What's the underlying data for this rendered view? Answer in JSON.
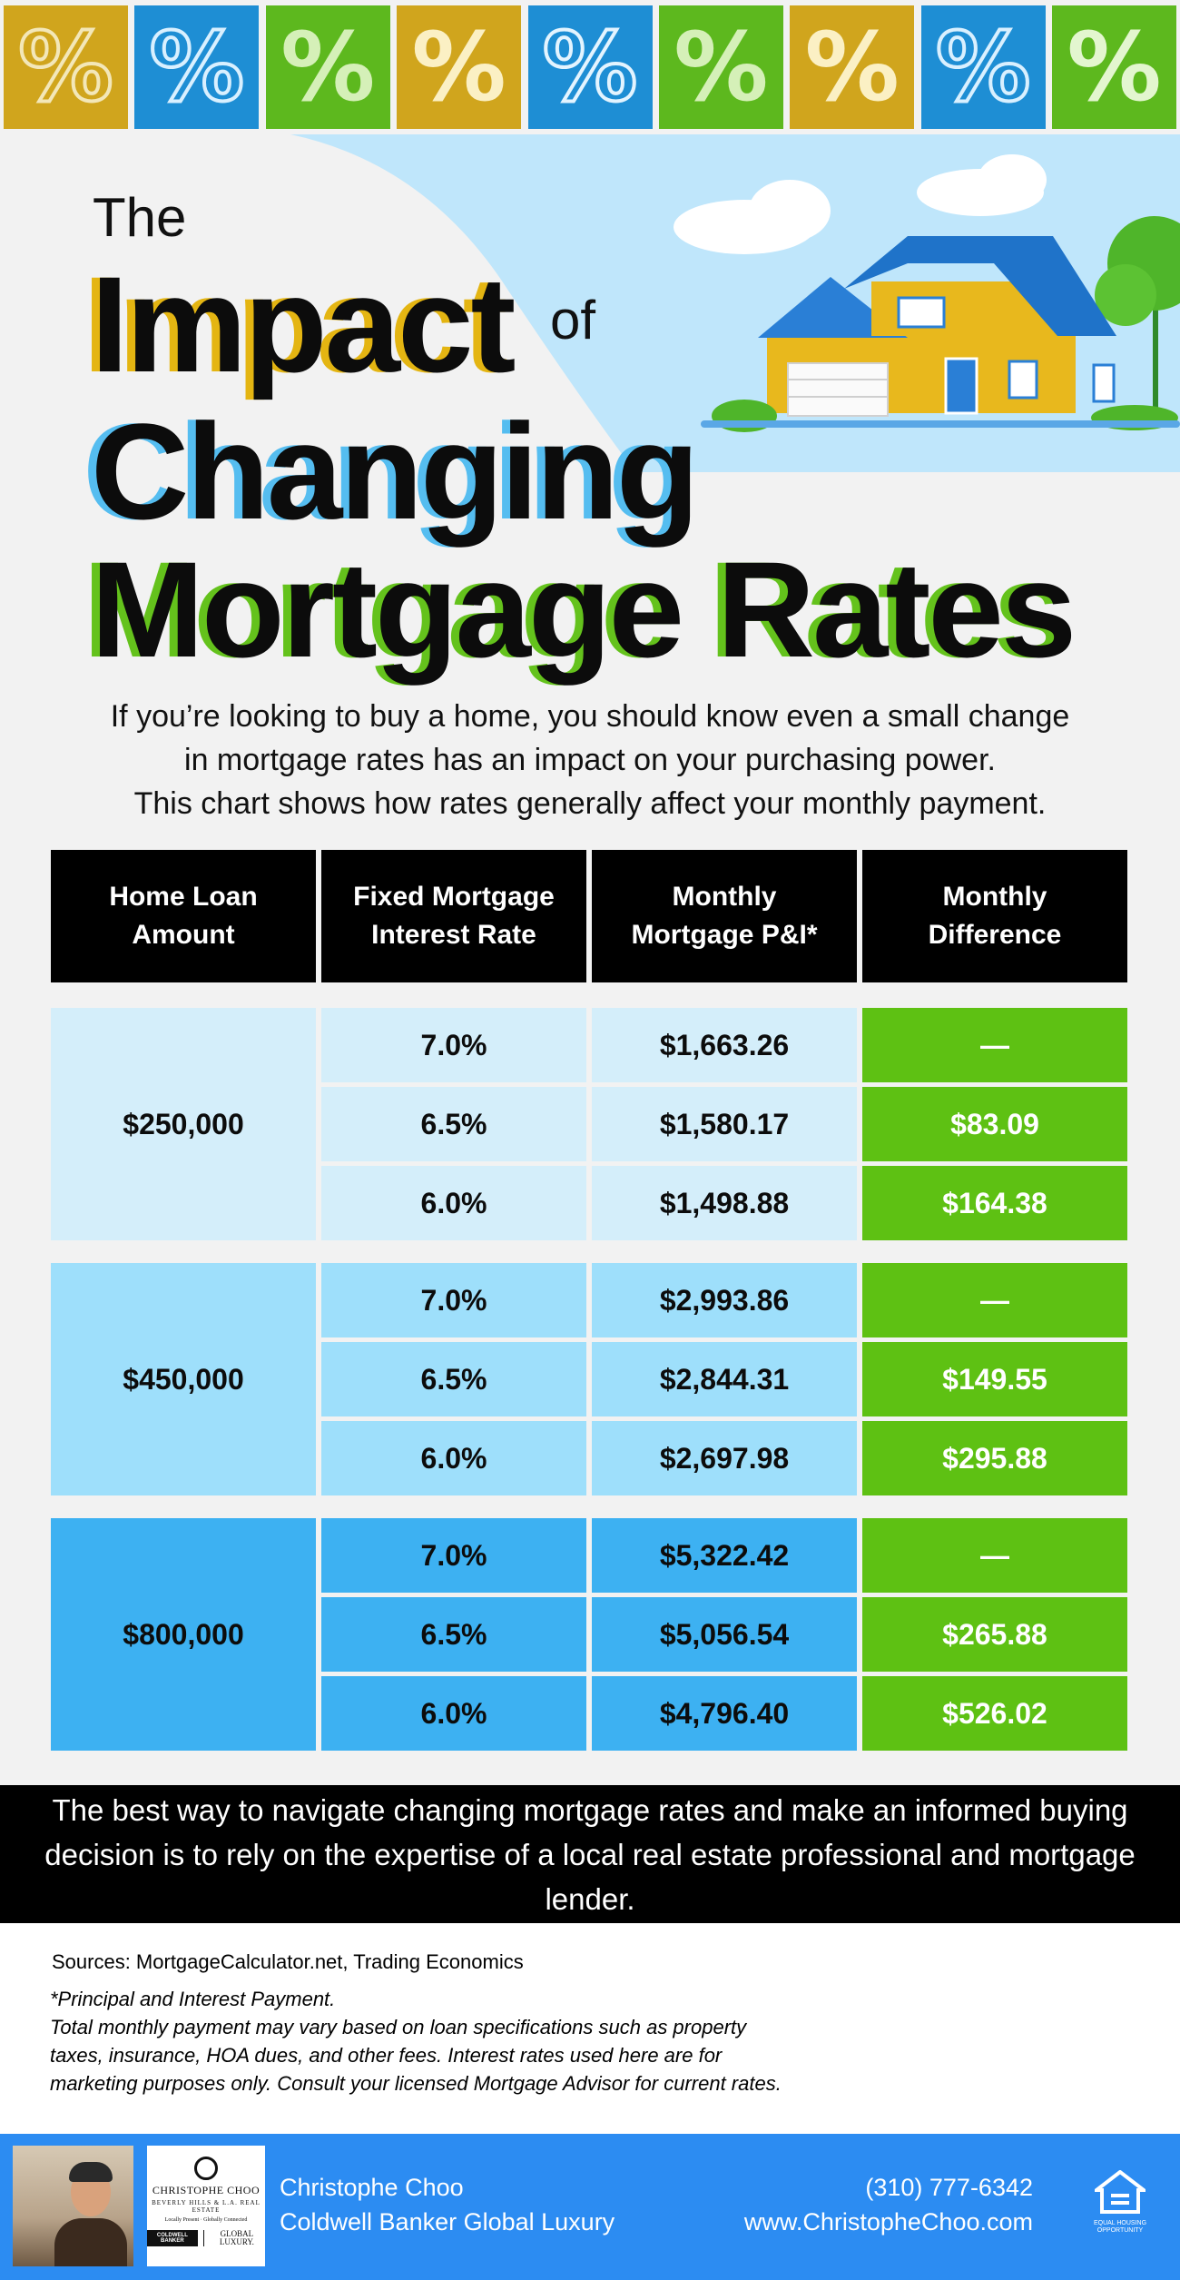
{
  "tiles": [
    {
      "glyph": "%",
      "bg": "#d0a51d",
      "fg": "#f3e7b8",
      "style": "outline"
    },
    {
      "glyph": "%",
      "bg": "#1e8ed4",
      "fg": "#d9f0ff",
      "style": "outline"
    },
    {
      "glyph": "%",
      "bg": "#5db81e",
      "fg": "#d5f0b8",
      "style": "solid"
    },
    {
      "glyph": "%",
      "bg": "#d0a51d",
      "fg": "#fbf0c4",
      "style": "solid"
    },
    {
      "glyph": "%",
      "bg": "#1e8ed4",
      "fg": "#e3f4ff",
      "style": "outline"
    },
    {
      "glyph": "%",
      "bg": "#5db81e",
      "fg": "#d5f0b8",
      "style": "solid"
    },
    {
      "glyph": "%",
      "bg": "#d0a51d",
      "fg": "#fbf0c4",
      "style": "solid"
    },
    {
      "glyph": "%",
      "bg": "#1e8ed4",
      "fg": "#d9f0ff",
      "style": "outline"
    },
    {
      "glyph": "%",
      "bg": "#5db81e",
      "fg": "#e3f6cf",
      "style": "solid"
    }
  ],
  "title": {
    "the": "The",
    "impact": "Impact",
    "of": "of",
    "changing": "Changing",
    "mortgage_rates": "Mortgage Rates"
  },
  "intro": {
    "line1": "If you’re looking to buy a home, you should know even a small change",
    "line2": "in mortgage rates has an impact on your purchasing power.",
    "line3": "This chart shows how rates generally affect your monthly payment."
  },
  "table": {
    "headers": [
      {
        "line1": "Home Loan",
        "line2": "Amount"
      },
      {
        "line1": "Fixed Mortgage",
        "line2": "Interest Rate"
      },
      {
        "line1": "Monthly",
        "line2": "Mortgage P&I*"
      },
      {
        "line1": "Monthly",
        "line2": "Difference"
      }
    ],
    "groups": [
      {
        "amount": "$250,000",
        "color": "#d4eefa",
        "rows": [
          {
            "rate": "7.0%",
            "payment": "$1,663.26",
            "difference": "—"
          },
          {
            "rate": "6.5%",
            "payment": "$1,580.17",
            "difference": "$83.09"
          },
          {
            "rate": "6.0%",
            "payment": "$1,498.88",
            "difference": "$164.38"
          }
        ]
      },
      {
        "amount": "$450,000",
        "color": "#9edffb",
        "rows": [
          {
            "rate": "7.0%",
            "payment": "$2,993.86",
            "difference": "—"
          },
          {
            "rate": "6.5%",
            "payment": "$2,844.31",
            "difference": "$149.55"
          },
          {
            "rate": "6.0%",
            "payment": "$2,697.98",
            "difference": "$295.88"
          }
        ]
      },
      {
        "amount": "$800,000",
        "color": "#3db1f2",
        "rows": [
          {
            "rate": "7.0%",
            "payment": "$5,322.42",
            "difference": "—"
          },
          {
            "rate": "6.5%",
            "payment": "$5,056.54",
            "difference": "$265.88"
          },
          {
            "rate": "6.0%",
            "payment": "$4,796.40",
            "difference": "$526.02"
          }
        ]
      }
    ]
  },
  "banner": {
    "line1": "The best way to navigate changing mortgage rates and make an informed buying",
    "line2": "decision is to rely on the expertise of a local real estate professional and mortgage lender."
  },
  "sources": "Sources: MortgageCalculator.net, Trading Economics",
  "notes": {
    "line1": "*Principal and Interest Payment.",
    "line2": "Total monthly payment may vary based on loan specifications such as property",
    "line3": "taxes, insurance, HOA dues, and other fees. Interest rates used here are for",
    "line4": "marketing purposes only. Consult your licensed Mortgage Advisor for current rates."
  },
  "footer": {
    "name": "Christophe Choo",
    "company": "Coldwell Banker Global Luxury",
    "phone": "(310) 777-6342",
    "website": "www.ChristopheChoo.com",
    "logo_name": "CHRISTOPHE CHOO",
    "logo_sub": "BEVERLY HILLS & L.A. REAL ESTATE",
    "logo_tag": "Locally Present · Globally Connected",
    "logo_cb": "COLDWELL BANKER",
    "logo_gl": "GLOBAL LUXURY.",
    "eho_text": "EQUAL HOUSING OPPORTUNITY",
    "color": "#2c8cf2"
  }
}
